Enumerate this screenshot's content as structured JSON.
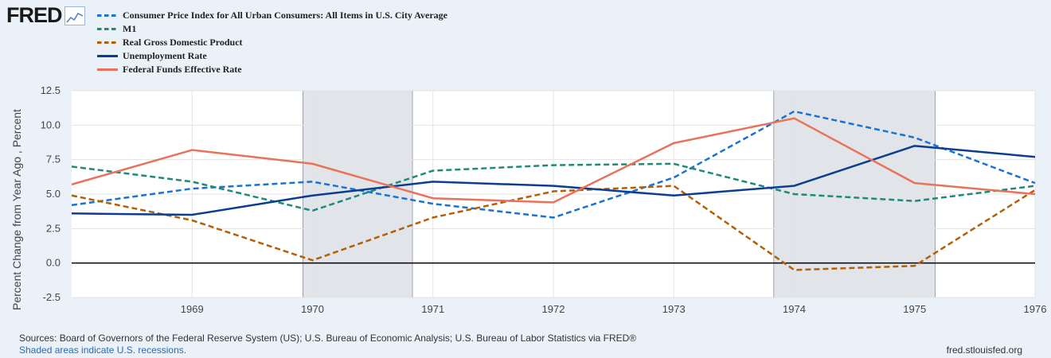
{
  "brand": {
    "logo_text": "FRED",
    "logo_icon": "chart-line-icon"
  },
  "chart_data": {
    "type": "line",
    "ylabel": "Percent Change from Year Ago , Percent",
    "xlabel": "",
    "ylim": [
      -2.5,
      12.5
    ],
    "yticks": [
      "12.5",
      "10.0",
      "7.5",
      "5.0",
      "2.5",
      "0.0",
      "-2.5"
    ],
    "xticks": [
      "1969",
      "1970",
      "1971",
      "1972",
      "1973",
      "1974",
      "1975",
      "1976"
    ],
    "x": [
      1968.0,
      1969.0,
      1970.0,
      1971.0,
      1972.0,
      1973.0,
      1974.0,
      1975.0,
      1976.0
    ],
    "xlim": [
      1968.0,
      1976.0
    ],
    "recessions": [
      [
        1969.92,
        1970.83
      ],
      [
        1973.83,
        1975.17
      ]
    ],
    "series": [
      {
        "name": "Consumer Price Index for All Urban Consumers: All Items in U.S. City Average",
        "color": "#1a73d0",
        "dash": true,
        "values": [
          4.2,
          5.4,
          5.9,
          4.3,
          3.3,
          6.2,
          11.0,
          9.1,
          5.8
        ]
      },
      {
        "name": "M1",
        "color": "#1f8a7a",
        "dash": true,
        "values": [
          7.0,
          5.9,
          3.8,
          6.7,
          7.1,
          7.2,
          5.0,
          4.5,
          5.6
        ]
      },
      {
        "name": "Real Gross Domestic Product",
        "color": "#b45f06",
        "dash": true,
        "values": [
          4.9,
          3.1,
          0.2,
          3.3,
          5.2,
          5.6,
          -0.5,
          -0.2,
          5.3
        ]
      },
      {
        "name": "Unemployment Rate",
        "color": "#0b3d91",
        "dash": false,
        "values": [
          3.6,
          3.5,
          4.9,
          5.9,
          5.6,
          4.9,
          5.6,
          8.5,
          7.7
        ]
      },
      {
        "name": "Federal Funds Effective Rate",
        "color": "#e8735a",
        "dash": false,
        "values": [
          5.7,
          8.2,
          7.2,
          4.7,
          4.4,
          8.7,
          10.5,
          5.8,
          5.0
        ]
      }
    ]
  },
  "footer": {
    "sources": "Sources: Board of Governors of the Federal Reserve System (US); U.S. Bureau of Economic Analysis; U.S. Bureau of Labor Statistics via FRED®",
    "shaded_note": "Shaded areas indicate U.S. recessions.",
    "site": "fred.stlouisfed.org"
  }
}
